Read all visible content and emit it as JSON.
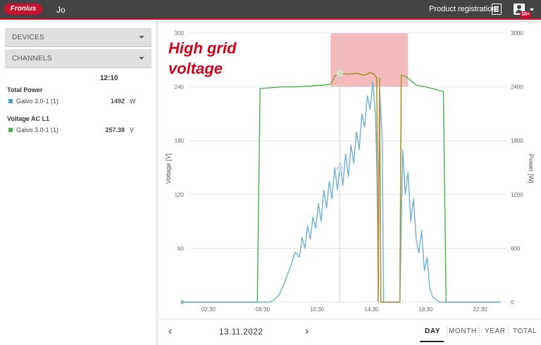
{
  "header": {
    "logo_text": "Fronius",
    "username": "Jo",
    "product_registration": "Product registration",
    "notification_badge": "10+",
    "brand_color": "#c8102e",
    "bar_color": "#444444"
  },
  "sidebar": {
    "devices_label": "DEVICES",
    "channels_label": "CHANNELS",
    "time": "12:10",
    "groups": [
      {
        "title": "Total Power",
        "item": "Galvo 3.0-1 (1)",
        "value": "1492",
        "unit": "W",
        "color": "#4f9ec8"
      },
      {
        "title": "Voltage AC L1",
        "item": "Galvo 3.0-1 (1)",
        "value": "257.38",
        "unit": "V",
        "color": "#4caf50"
      }
    ]
  },
  "annotation": {
    "line1": "High grid",
    "line2": "voltage",
    "color": "#d0021b",
    "highlight_color": "#f3b4b6"
  },
  "chart_data": {
    "type": "line",
    "x_ticks": [
      "02:30",
      "06:30",
      "10:30",
      "14:30",
      "18:30",
      "22:30"
    ],
    "y_left_ticks": [
      "300",
      "240",
      "180",
      "120",
      "60",
      "0"
    ],
    "y_right_ticks": [
      "3000",
      "2400",
      "1800",
      "1200",
      "600",
      "0"
    ],
    "ylabel_left": "Voltage [V]",
    "ylabel_right": "Power [W]",
    "ylim_left": [
      0,
      300
    ],
    "ylim_right": [
      0,
      3000
    ],
    "highlight": {
      "x_start_h": 11.5,
      "x_end_h": 17.2,
      "y_low": 240,
      "y_high": 300
    },
    "cursor_h": 12.17,
    "series": [
      {
        "name": "Voltage AC L1",
        "color": "#4caf50",
        "axis": "left",
        "points": [
          [
            0.5,
            0
          ],
          [
            6.1,
            0
          ],
          [
            6.3,
            238
          ],
          [
            7.0,
            239
          ],
          [
            8.0,
            240
          ],
          [
            9.0,
            240
          ],
          [
            10.0,
            241
          ],
          [
            11.0,
            242
          ],
          [
            11.5,
            243
          ],
          [
            11.8,
            252
          ],
          [
            12.2,
            255
          ],
          [
            12.8,
            254
          ],
          [
            13.4,
            255
          ],
          [
            14.0,
            253
          ],
          [
            14.4,
            256
          ],
          [
            14.7,
            254
          ],
          [
            14.9,
            250
          ],
          [
            15.0,
            0
          ],
          [
            15.1,
            250
          ],
          [
            15.2,
            0
          ],
          [
            16.6,
            0
          ],
          [
            16.7,
            253
          ],
          [
            17.0,
            252
          ],
          [
            17.4,
            247
          ],
          [
            17.8,
            242
          ],
          [
            18.5,
            240
          ],
          [
            19.0,
            238
          ],
          [
            19.8,
            235
          ],
          [
            20.0,
            0
          ],
          [
            24.0,
            0
          ]
        ]
      },
      {
        "name": "Total Power",
        "color": "#6fb0d2",
        "axis": "right",
        "points": [
          [
            0.5,
            0
          ],
          [
            7.0,
            0
          ],
          [
            7.3,
            20
          ],
          [
            7.7,
            80
          ],
          [
            8.0,
            180
          ],
          [
            8.3,
            300
          ],
          [
            8.6,
            420
          ],
          [
            8.9,
            560
          ],
          [
            9.2,
            500
          ],
          [
            9.4,
            720
          ],
          [
            9.6,
            600
          ],
          [
            9.8,
            850
          ],
          [
            10.0,
            700
          ],
          [
            10.2,
            950
          ],
          [
            10.4,
            820
          ],
          [
            10.6,
            1100
          ],
          [
            10.8,
            900
          ],
          [
            11.0,
            1250
          ],
          [
            11.2,
            1050
          ],
          [
            11.4,
            1350
          ],
          [
            11.6,
            1150
          ],
          [
            11.8,
            1500
          ],
          [
            12.0,
            1250
          ],
          [
            12.2,
            1550
          ],
          [
            12.4,
            1300
          ],
          [
            12.6,
            1650
          ],
          [
            12.8,
            1400
          ],
          [
            13.0,
            1750
          ],
          [
            13.2,
            1550
          ],
          [
            13.4,
            1900
          ],
          [
            13.6,
            1700
          ],
          [
            13.8,
            2100
          ],
          [
            14.0,
            1950
          ],
          [
            14.2,
            2300
          ],
          [
            14.4,
            2150
          ],
          [
            14.6,
            2450
          ],
          [
            14.8,
            2100
          ],
          [
            14.9,
            1500
          ],
          [
            15.0,
            450
          ],
          [
            15.1,
            2400
          ],
          [
            15.3,
            1800
          ],
          [
            15.4,
            0
          ],
          [
            16.6,
            0
          ],
          [
            16.8,
            1700
          ],
          [
            17.0,
            1200
          ],
          [
            17.2,
            1450
          ],
          [
            17.4,
            900
          ],
          [
            17.6,
            1150
          ],
          [
            17.8,
            700
          ],
          [
            18.0,
            550
          ],
          [
            18.2,
            800
          ],
          [
            18.4,
            350
          ],
          [
            18.6,
            500
          ],
          [
            18.8,
            150
          ],
          [
            19.0,
            60
          ],
          [
            19.5,
            0
          ],
          [
            24.0,
            0
          ]
        ]
      }
    ]
  },
  "footer": {
    "date": "13.11.2022",
    "prev_icon": "‹",
    "next_icon": "›",
    "tabs": [
      "DAY",
      "MONTH",
      "YEAR",
      "TOTAL"
    ]
  }
}
